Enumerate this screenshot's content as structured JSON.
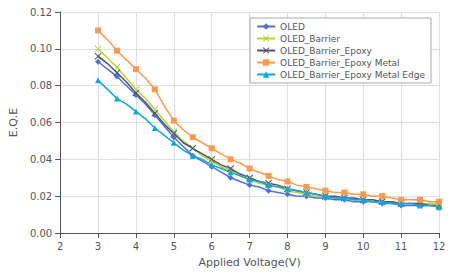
{
  "chart_data": {
    "type": "line",
    "xlabel": "Applied Voltage(V)",
    "ylabel": "E.Q.E",
    "xlim": [
      2,
      12
    ],
    "ylim": [
      0,
      0.12
    ],
    "xticks": [
      2,
      3,
      4,
      5,
      6,
      7,
      8,
      9,
      10,
      11,
      12
    ],
    "yticks": [
      {
        "value": 0,
        "label": "0.00"
      },
      0.02,
      0.04,
      0.06,
      0.08,
      {
        "value": 0.1,
        "label": "0.10"
      },
      0.12
    ],
    "grid": true,
    "legend": "upper right",
    "x": [
      3.0,
      3.25,
      3.5,
      3.75,
      4.0,
      4.25,
      4.5,
      4.75,
      5.0,
      5.25,
      5.5,
      5.75,
      6.0,
      6.25,
      6.5,
      6.75,
      7.0,
      7.25,
      7.5,
      7.75,
      8.0,
      8.25,
      8.5,
      8.75,
      9.0,
      9.25,
      9.5,
      9.75,
      10.0,
      10.25,
      10.5,
      10.75,
      11.0,
      11.25,
      11.5,
      11.75,
      12.0
    ],
    "series": [
      {
        "name": "OLED",
        "marker": "diamond",
        "values": [
          0.093,
          0.089,
          0.085,
          0.08,
          0.075,
          0.07,
          0.064,
          0.058,
          0.052,
          0.047,
          0.042,
          0.039,
          0.036,
          0.033,
          0.03,
          0.028,
          0.026,
          0.025,
          0.023,
          0.022,
          0.021,
          0.02,
          0.02,
          0.019,
          0.019,
          0.018,
          0.018,
          0.017,
          0.017,
          0.017,
          0.016,
          0.016,
          0.015,
          0.015,
          0.015,
          0.015,
          0.015
        ]
      },
      {
        "name": "OLED_Barrier",
        "marker": "x",
        "values": [
          0.1,
          0.095,
          0.09,
          0.084,
          0.078,
          0.073,
          0.067,
          0.061,
          0.055,
          0.05,
          0.046,
          0.042,
          0.039,
          0.036,
          0.034,
          0.031,
          0.029,
          0.027,
          0.026,
          0.025,
          0.023,
          0.022,
          0.021,
          0.02,
          0.02,
          0.019,
          0.019,
          0.018,
          0.018,
          0.017,
          0.017,
          0.017,
          0.016,
          0.016,
          0.016,
          0.016,
          0.016
        ]
      },
      {
        "name": "OLED_Barrier_Epoxy",
        "marker": "x",
        "values": [
          0.096,
          0.092,
          0.087,
          0.082,
          0.076,
          0.071,
          0.065,
          0.059,
          0.054,
          0.049,
          0.046,
          0.043,
          0.04,
          0.037,
          0.035,
          0.032,
          0.03,
          0.028,
          0.027,
          0.026,
          0.024,
          0.023,
          0.022,
          0.021,
          0.02,
          0.02,
          0.019,
          0.019,
          0.018,
          0.018,
          0.017,
          0.017,
          0.016,
          0.016,
          0.016,
          0.015,
          0.015
        ]
      },
      {
        "name": "OLED_Barrier_Epoxy Metal",
        "marker": "square",
        "values": [
          0.11,
          0.105,
          0.099,
          0.094,
          0.089,
          0.084,
          0.078,
          0.069,
          0.061,
          0.056,
          0.052,
          0.049,
          0.046,
          0.043,
          0.04,
          0.038,
          0.035,
          0.033,
          0.031,
          0.029,
          0.028,
          0.026,
          0.025,
          0.024,
          0.023,
          0.022,
          0.022,
          0.021,
          0.021,
          0.02,
          0.02,
          0.019,
          0.018,
          0.018,
          0.018,
          0.017,
          0.017
        ]
      },
      {
        "name": "OLED_Barrier_Epoxy Metal Edge",
        "marker": "triangle",
        "values": [
          0.083,
          0.078,
          0.073,
          0.07,
          0.066,
          0.062,
          0.057,
          0.053,
          0.049,
          0.045,
          0.042,
          0.04,
          0.037,
          0.035,
          0.033,
          0.031,
          0.029,
          0.028,
          0.026,
          0.025,
          0.024,
          0.023,
          0.022,
          0.021,
          0.02,
          0.019,
          0.019,
          0.018,
          0.018,
          0.017,
          0.017,
          0.016,
          0.016,
          0.016,
          0.015,
          0.015,
          0.014
        ]
      }
    ]
  }
}
